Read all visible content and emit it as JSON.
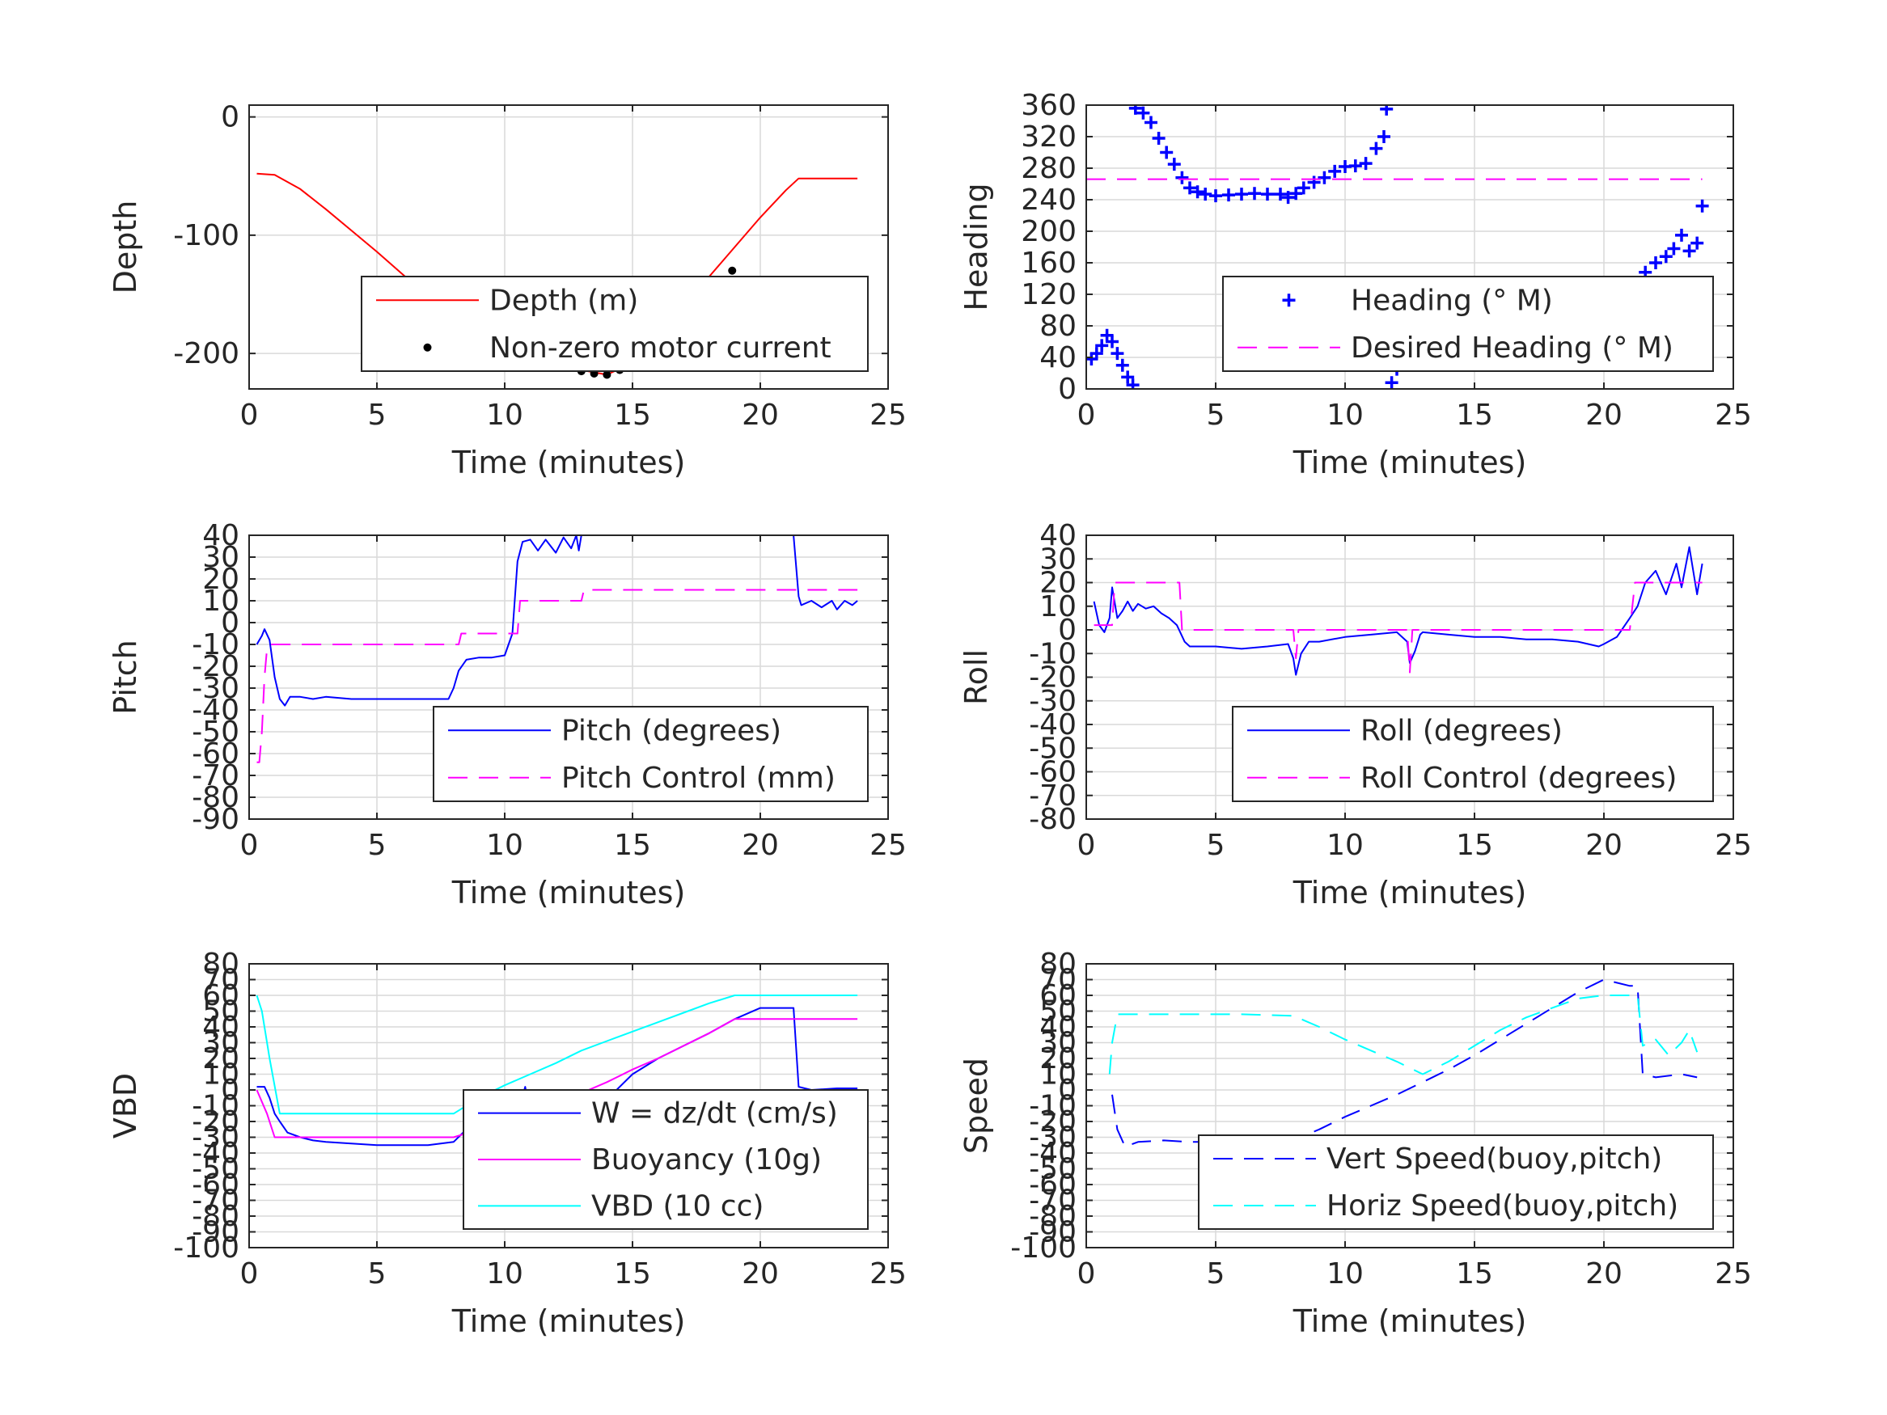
{
  "chart_data": [
    {
      "type": "line",
      "xlabel": "Time (minutes)",
      "ylabel": "Depth",
      "xlim": [
        0,
        25
      ],
      "ylim": [
        -230,
        10
      ],
      "xticks": [
        0,
        5,
        10,
        15,
        20,
        25
      ],
      "yticks": [
        0,
        -100,
        -200
      ],
      "grid": true,
      "legend_placement": "bottom-right",
      "series": [
        {
          "name": "Depth (m)",
          "style": "solid",
          "color": "#ff0000",
          "x": [
            0.3,
            1.0,
            2.0,
            3.0,
            4.0,
            5.0,
            6.0,
            7.0,
            8.0,
            9.0,
            10.0,
            11.0,
            12.0,
            13.0,
            14.0,
            15.0,
            16.0,
            17.0,
            18.0,
            19.0,
            20.0,
            21.0,
            21.5,
            23.8
          ],
          "y": [
            -48,
            -49,
            -61,
            -78,
            -96,
            -114,
            -133,
            -152,
            -171,
            -188,
            -198,
            -202,
            -207,
            -214,
            -218,
            -208,
            -185,
            -160,
            -135,
            -110,
            -85,
            -62,
            -52,
            -52
          ]
        },
        {
          "name": "Non-zero motor current",
          "style": "dots",
          "color": "#000000",
          "x": [
            8.3,
            9.0,
            9.5,
            10.0,
            10.5,
            11.0,
            11.5,
            12.0,
            12.5,
            13.0,
            13.5,
            14.0,
            14.5,
            15.0,
            15.5,
            16.0,
            16.5,
            17.0,
            17.5,
            18.0,
            18.5,
            18.9
          ],
          "y": [
            -185,
            -192,
            -196,
            -199,
            -202,
            -201,
            -204,
            -207,
            -211,
            -215,
            -217,
            -218,
            -214,
            -207,
            -198,
            -188,
            -178,
            -168,
            -158,
            -148,
            -138,
            -130
          ]
        }
      ]
    },
    {
      "type": "scatter",
      "xlabel": "Time (minutes)",
      "ylabel": "Heading",
      "xlim": [
        0,
        25
      ],
      "ylim": [
        0,
        360
      ],
      "xticks": [
        0,
        5,
        10,
        15,
        20,
        25
      ],
      "yticks": [
        0,
        40,
        80,
        120,
        160,
        200,
        240,
        280,
        320,
        360
      ],
      "grid": true,
      "legend_placement": "bottom-right",
      "series": [
        {
          "name": "Heading (° M)",
          "style": "plus",
          "color": "#0000ff",
          "x": [
            0.2,
            0.4,
            0.6,
            0.8,
            1.0,
            1.2,
            1.4,
            1.6,
            1.8,
            1.9,
            2.2,
            2.5,
            2.8,
            3.1,
            3.4,
            3.7,
            4.0,
            4.3,
            4.6,
            5.0,
            5.5,
            6.0,
            6.5,
            7.0,
            7.5,
            7.8,
            8.1,
            8.4,
            8.8,
            9.2,
            9.6,
            10.0,
            10.4,
            10.8,
            11.2,
            11.5,
            11.6,
            11.8,
            12.0,
            12.3,
            12.6,
            13.0,
            13.5,
            14.0,
            14.5,
            15.0,
            15.5,
            16.0,
            16.5,
            17.0,
            17.5,
            18.0,
            18.5,
            19.0,
            19.5,
            20.0,
            20.5,
            21.0,
            21.3,
            21.6,
            22.0,
            22.4,
            22.7,
            23.0,
            23.3,
            23.6,
            23.8
          ],
          "y": [
            38,
            45,
            55,
            68,
            60,
            45,
            30,
            15,
            5,
            356,
            350,
            338,
            318,
            300,
            285,
            268,
            255,
            250,
            247,
            245,
            246,
            247,
            248,
            247,
            247,
            243,
            248,
            255,
            262,
            268,
            276,
            282,
            283,
            286,
            305,
            320,
            355,
            8,
            25,
            45,
            65,
            78,
            88,
            92,
            90,
            88,
            86,
            80,
            76,
            80,
            82,
            84,
            88,
            86,
            84,
            86,
            92,
            110,
            128,
            148,
            160,
            168,
            178,
            195,
            175,
            185,
            232
          ]
        },
        {
          "name": "Desired Heading (° M)",
          "style": "dashed",
          "color": "#ff00ff",
          "x": [
            0,
            23.8
          ],
          "y": [
            266,
            266
          ]
        }
      ]
    },
    {
      "type": "line",
      "xlabel": "Time (minutes)",
      "ylabel": "Pitch",
      "xlim": [
        0,
        25
      ],
      "ylim": [
        -90,
        40
      ],
      "xticks": [
        0,
        5,
        10,
        15,
        20,
        25
      ],
      "yticks": [
        40,
        30,
        20,
        10,
        0,
        -10,
        -20,
        -30,
        -40,
        -50,
        -60,
        -70,
        -80,
        -90
      ],
      "grid": true,
      "legend_placement": "bottom-right",
      "series": [
        {
          "name": "Pitch (degrees)",
          "style": "solid",
          "color": "#0000ff",
          "x": [
            0.3,
            0.5,
            0.6,
            0.8,
            1.0,
            1.2,
            1.4,
            1.6,
            2.0,
            2.5,
            3.0,
            4.0,
            5.0,
            6.0,
            7.0,
            7.8,
            8.0,
            8.2,
            8.5,
            9.0,
            9.5,
            10.0,
            10.3,
            10.5,
            10.7,
            11.0,
            11.3,
            11.6,
            12.0,
            12.3,
            12.6,
            12.8,
            12.9,
            13.0
          ],
          "y": [
            -10,
            -6,
            -3,
            -8,
            -25,
            -35,
            -38,
            -34,
            -34,
            -35,
            -34,
            -35,
            -35,
            -35,
            -35,
            -35,
            -30,
            -22,
            -17,
            -16,
            -16,
            -15,
            -5,
            28,
            37,
            38,
            33,
            38,
            32,
            39,
            34,
            40,
            33,
            40
          ]
        },
        {
          "name": "",
          "style": "solid",
          "color": "#0000ff",
          "x": [
            21.3,
            21.5,
            21.6,
            22.0,
            22.4,
            22.8,
            23.0,
            23.3,
            23.6,
            23.8
          ],
          "y": [
            40,
            12,
            8,
            10,
            7,
            10,
            6,
            10,
            8,
            10
          ]
        },
        {
          "name": "Pitch Control (mm)",
          "style": "dashed",
          "color": "#ff00ff",
          "x": [
            0.3,
            0.4,
            0.5,
            0.6,
            0.7,
            0.8,
            8.2,
            8.3,
            9.0,
            9.5,
            10.0,
            10.5,
            10.6,
            11.0,
            13.0,
            13.1,
            23.8
          ],
          "y": [
            -64,
            -64,
            -50,
            -25,
            -12,
            -10,
            -10,
            -5,
            -5,
            -5,
            -5,
            -5,
            10,
            10,
            10,
            15,
            15
          ]
        }
      ]
    },
    {
      "type": "line",
      "xlabel": "Time (minutes)",
      "ylabel": "Roll",
      "xlim": [
        0,
        25
      ],
      "ylim": [
        -80,
        40
      ],
      "xticks": [
        0,
        5,
        10,
        15,
        20,
        25
      ],
      "yticks": [
        40,
        30,
        20,
        10,
        0,
        -10,
        -20,
        -30,
        -40,
        -50,
        -60,
        -70,
        -80
      ],
      "grid": true,
      "legend_placement": "bottom-right",
      "series": [
        {
          "name": "Roll (degrees)",
          "style": "solid",
          "color": "#0000ff",
          "x": [
            0.3,
            0.5,
            0.7,
            0.9,
            1.0,
            1.2,
            1.4,
            1.6,
            1.8,
            2.0,
            2.3,
            2.6,
            2.9,
            3.2,
            3.5,
            3.8,
            4.0,
            5.0,
            6.0,
            7.0,
            7.8,
            8.0,
            8.1,
            8.3,
            8.6,
            9.0,
            10.0,
            11.0,
            12.0,
            12.4,
            12.5,
            12.7,
            12.9,
            13.0,
            14.0,
            15.0,
            16.0,
            17.0,
            18.0,
            19.0,
            19.8,
            20.0,
            20.5,
            21.0,
            21.3,
            21.6,
            22.0,
            22.4,
            22.8,
            23.0,
            23.3,
            23.6,
            23.8
          ],
          "y": [
            12,
            2,
            -1,
            5,
            18,
            5,
            8,
            12,
            8,
            11,
            9,
            10,
            7,
            5,
            2,
            -5,
            -7,
            -7,
            -8,
            -7,
            -6,
            -12,
            -19,
            -10,
            -5,
            -5,
            -3,
            -2,
            -1,
            -5,
            -14,
            -9,
            -2,
            -1,
            -2,
            -3,
            -3,
            -4,
            -4,
            -5,
            -7,
            -6,
            -3,
            5,
            10,
            20,
            25,
            15,
            28,
            18,
            35,
            15,
            28
          ]
        },
        {
          "name": "Roll Control (degrees)",
          "style": "dashed",
          "color": "#ff00ff",
          "x": [
            0.3,
            0.5,
            0.8,
            1.0,
            1.1,
            3.6,
            3.7,
            8.0,
            8.1,
            8.2,
            12.4,
            12.5,
            12.6,
            20.2,
            20.3,
            21.0,
            21.2,
            23.8
          ],
          "y": [
            2,
            2,
            2,
            2,
            20,
            20,
            0,
            0,
            -12,
            0,
            0,
            -18,
            0,
            0,
            0,
            0,
            20,
            20
          ]
        }
      ]
    },
    {
      "type": "line",
      "xlabel": "Time (minutes)",
      "ylabel": "VBD",
      "xlim": [
        0,
        25
      ],
      "ylim": [
        -100,
        80
      ],
      "xticks": [
        0,
        5,
        10,
        15,
        20,
        25
      ],
      "yticks": [
        80,
        70,
        60,
        50,
        40,
        30,
        20,
        10,
        0,
        -10,
        -20,
        -30,
        -40,
        -50,
        -60,
        -70,
        -80,
        -90,
        -100
      ],
      "grid": true,
      "legend_placement": "bottom-right",
      "series": [
        {
          "name": "W = dz/dt (cm/s)",
          "style": "solid",
          "color": "#0000ff",
          "x": [
            0.3,
            0.6,
            0.8,
            1.0,
            1.2,
            1.5,
            2.0,
            2.5,
            3.0,
            4.0,
            5.0,
            6.0,
            7.0,
            8.0,
            8.5,
            9.0,
            10.0,
            10.5,
            10.8,
            11.0,
            12.0,
            13.0,
            14.0,
            15.0,
            16.0,
            17.0,
            18.0,
            19.0,
            20.0,
            21.0,
            21.3,
            21.5,
            22.0,
            23.0,
            23.8
          ],
          "y": [
            2,
            2,
            -5,
            -15,
            -20,
            -27,
            -30,
            -32,
            -33,
            -34,
            -35,
            -35,
            -35,
            -33,
            -25,
            -20,
            -18,
            -16,
            2,
            -15,
            -16,
            -16,
            -6,
            10,
            20,
            28,
            36,
            45,
            52,
            52,
            52,
            2,
            0,
            1,
            1
          ]
        },
        {
          "name": "Buoyancy (10g)",
          "style": "solid",
          "color": "#ff00ff",
          "x": [
            0.3,
            0.7,
            1.0,
            2.0,
            4.0,
            6.0,
            8.0,
            9.0,
            10.0,
            11.0,
            12.0,
            13.0,
            14.0,
            15.0,
            16.0,
            17.0,
            18.0,
            19.0,
            20.0,
            21.0,
            22.0,
            23.8
          ],
          "y": [
            0,
            -15,
            -30,
            -30,
            -30,
            -30,
            -30,
            -25,
            -20,
            -16,
            -9,
            -2,
            5,
            13,
            20,
            28,
            36,
            45,
            45,
            45,
            45,
            45
          ]
        },
        {
          "name": "VBD (10 cc)",
          "style": "solid",
          "color": "#00ffff",
          "x": [
            0.3,
            0.5,
            0.8,
            1.2,
            2.0,
            4.0,
            6.0,
            8.0,
            9.0,
            10.0,
            11.0,
            12.0,
            13.0,
            14.0,
            15.0,
            16.0,
            17.0,
            18.0,
            19.0,
            20.0,
            21.0,
            22.0,
            23.8
          ],
          "y": [
            60,
            50,
            20,
            -15,
            -15,
            -15,
            -15,
            -15,
            -5,
            3,
            10,
            17,
            25,
            31,
            37,
            43,
            49,
            55,
            60,
            60,
            60,
            60,
            60
          ]
        }
      ]
    },
    {
      "type": "line",
      "xlabel": "Time (minutes)",
      "ylabel": "Speed",
      "xlim": [
        0,
        25
      ],
      "ylim": [
        -100,
        80
      ],
      "xticks": [
        0,
        5,
        10,
        15,
        20,
        25
      ],
      "yticks": [
        80,
        70,
        60,
        50,
        40,
        30,
        20,
        10,
        0,
        -10,
        -20,
        -30,
        -40,
        -50,
        -60,
        -70,
        -80,
        -90,
        -100
      ],
      "grid": true,
      "legend_placement": "bottom-right",
      "series": [
        {
          "name": "Vert Speed(buoy,pitch)",
          "style": "dashed",
          "color": "#0000ff",
          "x": [
            1.0,
            1.2,
            1.5,
            2.0,
            3.0,
            4.0,
            5.0,
            6.0,
            7.0,
            8.0,
            9.0,
            10.0,
            11.0,
            12.0,
            13.0,
            14.0,
            15.0,
            16.0,
            17.0,
            18.0,
            19.0,
            20.0,
            20.5,
            21.0,
            21.3,
            21.5,
            22.0,
            23.0,
            23.6
          ],
          "y": [
            -3,
            -25,
            -36,
            -33,
            -32,
            -33,
            -33,
            -33,
            -33,
            -32,
            -25,
            -17,
            -10,
            -3,
            5,
            13,
            22,
            32,
            42,
            52,
            62,
            70,
            68,
            66,
            66,
            10,
            8,
            10,
            8
          ]
        },
        {
          "name": "Horiz Speed(buoy,pitch)",
          "style": "dashed",
          "color": "#00ffff",
          "x": [
            0.9,
            1.0,
            1.2,
            2.0,
            4.0,
            6.0,
            8.0,
            9.0,
            10.0,
            11.0,
            12.0,
            13.0,
            14.0,
            15.0,
            16.0,
            17.0,
            18.0,
            19.0,
            20.0,
            21.0,
            21.3,
            21.5,
            22.0,
            22.5,
            23.0,
            23.3,
            23.6
          ],
          "y": [
            10,
            30,
            48,
            48,
            48,
            48,
            47,
            40,
            32,
            25,
            18,
            10,
            18,
            28,
            38,
            46,
            52,
            58,
            60,
            60,
            60,
            28,
            32,
            22,
            30,
            38,
            24
          ]
        }
      ]
    }
  ]
}
